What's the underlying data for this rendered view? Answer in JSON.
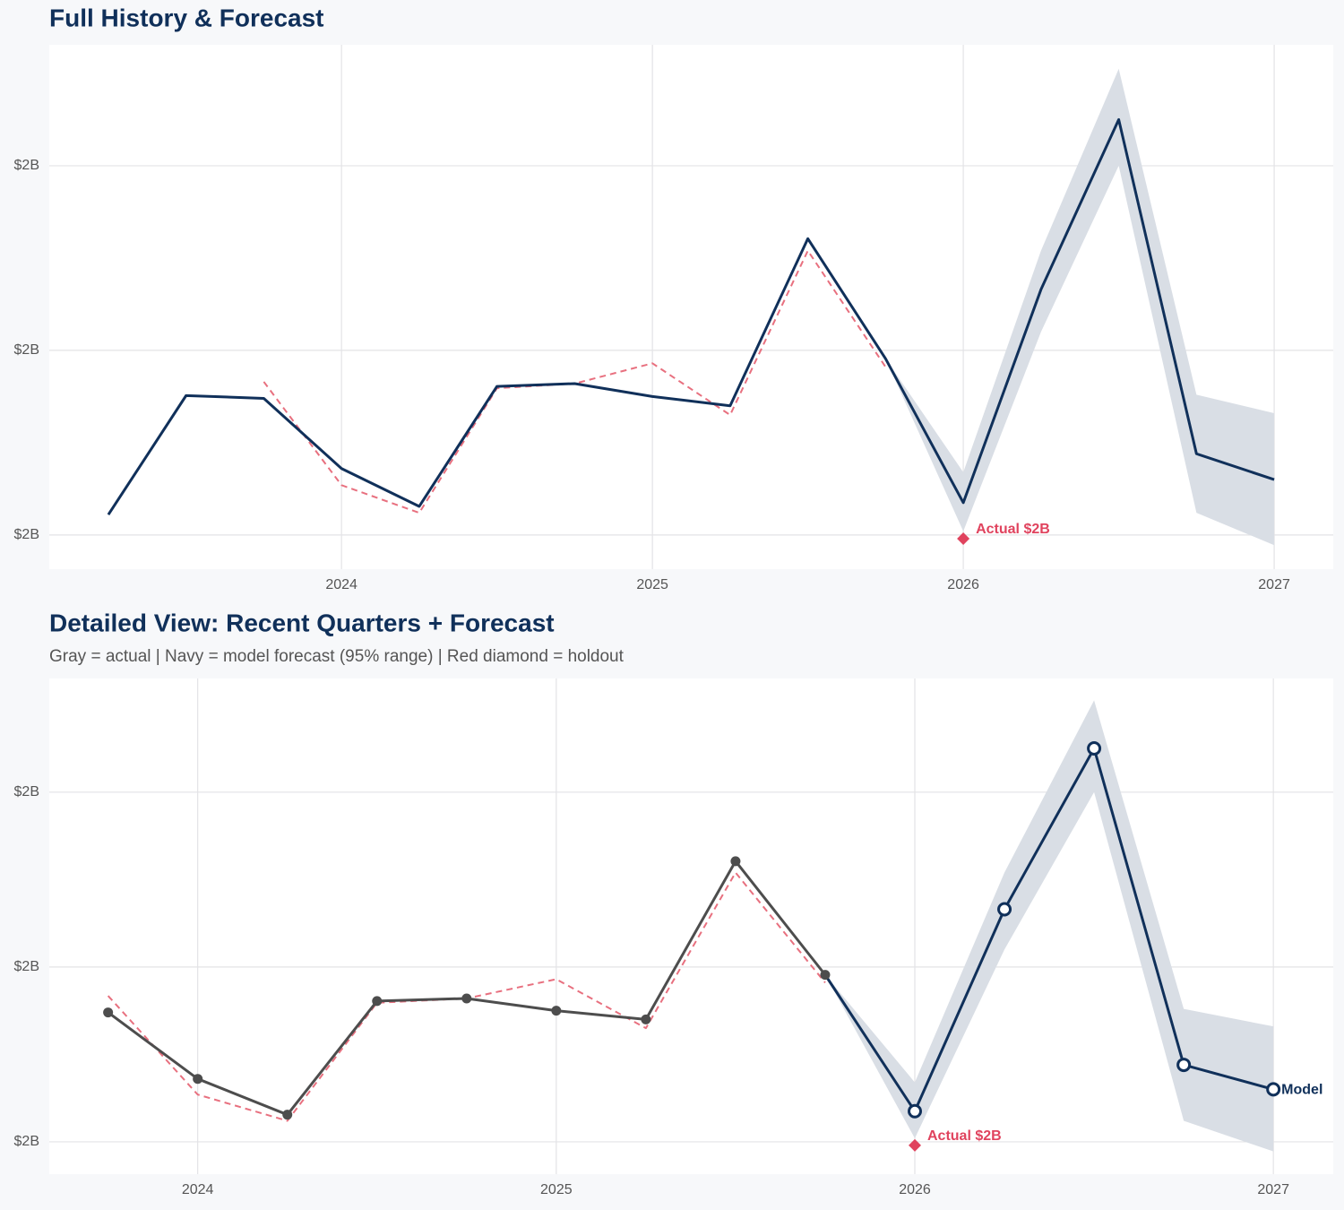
{
  "chart_data": [
    {
      "type": "line",
      "title": "Full History & Forecast",
      "x": [
        2023.25,
        2023.5,
        2023.75,
        2024.0,
        2024.25,
        2024.5,
        2024.75,
        2025.0,
        2025.25,
        2025.5,
        2025.75,
        2026.0,
        2026.25,
        2026.5,
        2026.75,
        2027.0
      ],
      "xlim": [
        2023.06,
        2027.19
      ],
      "xticks": [
        2024,
        2025,
        2026,
        2027
      ],
      "ylim": [
        1.763,
        2.331
      ],
      "yticks": [
        {
          "value": 1.8,
          "label": "$2B"
        },
        {
          "value": 2.0,
          "label": "$2B"
        },
        {
          "value": 2.2,
          "label": "$2B"
        }
      ],
      "grid": true,
      "band": {
        "color": "#d9dee5",
        "lower": [
          null,
          null,
          null,
          null,
          null,
          null,
          null,
          null,
          null,
          null,
          1.991,
          1.804,
          2.02,
          2.2,
          1.824,
          1.789
        ],
        "upper": [
          null,
          null,
          null,
          null,
          null,
          null,
          null,
          null,
          null,
          null,
          1.991,
          1.868,
          2.108,
          2.305,
          1.952,
          1.932
        ]
      },
      "series": [
        {
          "color": "#e8707f",
          "dash": true,
          "values": [
            null,
            null,
            1.966,
            1.854,
            1.824,
            1.959,
            1.964,
            1.986,
            1.93,
            2.108,
            1.982,
            null,
            null,
            null,
            null,
            null
          ]
        },
        {
          "color": "#10305a",
          "values": [
            1.822,
            1.951,
            1.948,
            1.872,
            1.831,
            1.961,
            1.964,
            1.95,
            1.94,
            2.121,
            1.991,
            1.835,
            2.066,
            2.25,
            1.888,
            1.86
          ]
        }
      ],
      "annotation": {
        "x": 2026.0,
        "y": 1.796,
        "label": "Actual $2B",
        "color": "#e0435e"
      }
    },
    {
      "type": "line",
      "title": "Detailed View: Recent Quarters + Forecast",
      "subtitle": "Gray = actual  |  Navy = model forecast (95% range)  |  Red diamond = holdout",
      "x": [
        2023.75,
        2024.0,
        2024.25,
        2024.5,
        2024.75,
        2025.0,
        2025.25,
        2025.5,
        2025.75,
        2026.0,
        2026.25,
        2026.5,
        2026.75,
        2027.0
      ],
      "xlim": [
        2023.586,
        2027.167
      ],
      "xticks": [
        2024,
        2025,
        2026,
        2027
      ],
      "ylim": [
        1.763,
        2.33
      ],
      "yticks": [
        {
          "value": 1.8,
          "label": "$2B"
        },
        {
          "value": 2.0,
          "label": "$2B"
        },
        {
          "value": 2.2,
          "label": "$2B"
        }
      ],
      "grid": true,
      "band": {
        "color": "#d9dee5",
        "lower": [
          null,
          null,
          null,
          null,
          null,
          null,
          null,
          null,
          1.991,
          1.804,
          2.02,
          2.2,
          1.824,
          1.789
        ],
        "upper": [
          null,
          null,
          null,
          null,
          null,
          null,
          null,
          null,
          1.991,
          1.868,
          2.108,
          2.305,
          1.952,
          1.932
        ]
      },
      "series": [
        {
          "color": "#e8707f",
          "dash": true,
          "values": [
            1.967,
            1.854,
            1.824,
            1.959,
            1.964,
            1.986,
            1.93,
            2.108,
            1.982,
            null,
            null,
            null,
            null,
            null
          ]
        },
        {
          "name": "Model",
          "color": "#10305a",
          "markers": "hollow",
          "values": [
            null,
            null,
            null,
            null,
            null,
            null,
            null,
            null,
            1.991,
            1.835,
            2.066,
            2.25,
            1.888,
            1.86
          ]
        },
        {
          "color": "#4d4d4d",
          "markers": "filled",
          "values": [
            1.948,
            1.872,
            1.831,
            1.961,
            1.964,
            1.95,
            1.94,
            2.121,
            1.991,
            null,
            null,
            null,
            null,
            null
          ]
        }
      ],
      "annotation": {
        "x": 2026.0,
        "y": 1.796,
        "label": "Actual $2B",
        "color": "#e0435e"
      }
    }
  ]
}
